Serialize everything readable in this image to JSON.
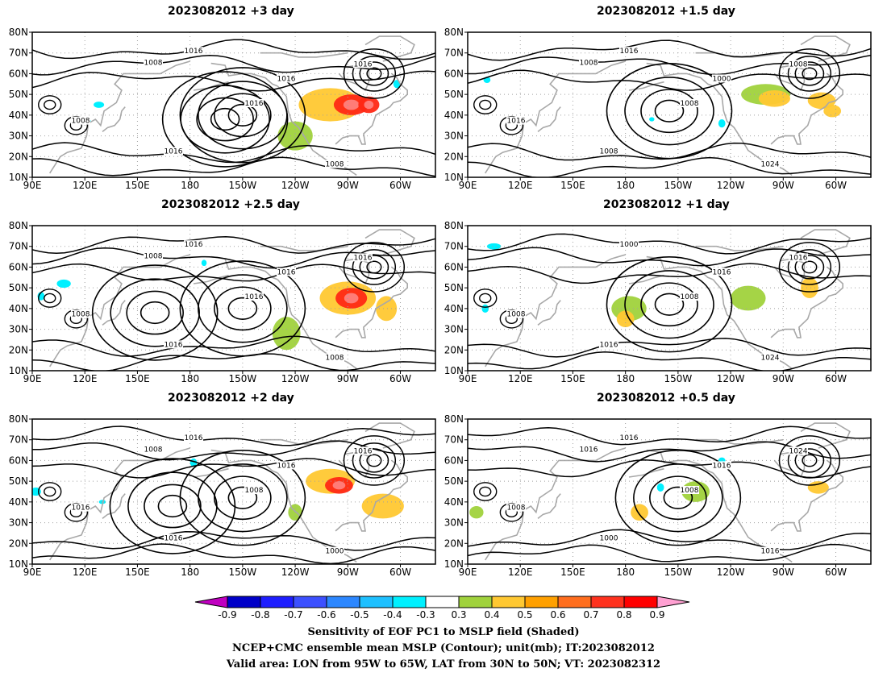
{
  "panels": [
    {
      "id": "p3",
      "title": "2023082012  +3 day",
      "contour_labels": [
        "1016",
        "1016",
        "1016",
        "1008",
        "1008",
        "1016",
        "1016",
        "1008"
      ],
      "warm": [
        [
          -120,
          30,
          10,
          7,
          "g"
        ],
        [
          -100,
          45,
          18,
          8,
          "y"
        ],
        [
          -88,
          45,
          10,
          5,
          "r"
        ],
        [
          -78,
          45,
          6,
          4,
          "r"
        ]
      ],
      "cool": [
        [
          128,
          45,
          3,
          1.5
        ],
        [
          -62,
          55,
          2,
          2
        ],
        [
          122,
          37,
          1.5,
          1
        ]
      ],
      "highs": [
        [
          -150,
          40
        ],
        [
          -160,
          38
        ]
      ]
    },
    {
      "id": "p15",
      "title": "2023082012  +1.5 day",
      "contour_labels": [
        "1016",
        "1008",
        "1008",
        "1016",
        "1024",
        "1008",
        "1000",
        "1008"
      ],
      "warm": [
        [
          -100,
          50,
          14,
          5,
          "g"
        ],
        [
          -95,
          48,
          9,
          4,
          "y"
        ],
        [
          -68,
          47,
          8,
          4,
          "y"
        ],
        [
          -62,
          42,
          5,
          3,
          "y"
        ]
      ],
      "cool": [
        [
          101,
          57,
          2,
          1.5
        ],
        [
          -125,
          36,
          2,
          2
        ],
        [
          -165,
          38,
          1.5,
          1
        ]
      ],
      "highs": [
        [
          -155,
          42
        ]
      ]
    },
    {
      "id": "p25",
      "title": "2023082012  +2.5 day",
      "contour_labels": [
        "1016",
        "1016",
        "1016",
        "1008",
        "1008",
        "1016",
        "1016",
        "1008"
      ],
      "warm": [
        [
          -125,
          28,
          8,
          8,
          "g"
        ],
        [
          -90,
          45,
          16,
          8,
          "y"
        ],
        [
          -88,
          45,
          9,
          5,
          "r"
        ],
        [
          -68,
          40,
          6,
          6,
          "y"
        ]
      ],
      "cool": [
        [
          108,
          52,
          4,
          2
        ],
        [
          95,
          46,
          2,
          2
        ],
        [
          -172,
          62,
          1.5,
          1.5
        ]
      ],
      "highs": [
        [
          -150,
          40
        ],
        [
          160,
          38
        ]
      ]
    },
    {
      "id": "p1",
      "title": "2023082012  +1 day",
      "contour_labels": [
        "1000",
        "1008",
        "1016",
        "1008",
        "1024",
        "1016",
        "1016"
      ],
      "warm": [
        [
          -178,
          40,
          10,
          6,
          "g"
        ],
        [
          -180,
          35,
          5,
          4,
          "y"
        ],
        [
          -110,
          45,
          10,
          6,
          "g"
        ],
        [
          -75,
          50,
          5,
          5,
          "y"
        ]
      ],
      "cool": [
        [
          105,
          70,
          4,
          1.5
        ],
        [
          100,
          40,
          2,
          2
        ]
      ],
      "highs": [
        [
          -155,
          42
        ]
      ]
    },
    {
      "id": "p2",
      "title": "2023082012  +2 day",
      "contour_labels": [
        "1016",
        "1008",
        "1016",
        "1016",
        "1000",
        "1016",
        "1016",
        "1008"
      ],
      "warm": [
        [
          -100,
          50,
          14,
          6,
          "y"
        ],
        [
          -95,
          48,
          8,
          4,
          "r"
        ],
        [
          -70,
          38,
          12,
          6,
          "y"
        ],
        [
          -120,
          35,
          4,
          4,
          "g"
        ]
      ],
      "cool": [
        [
          92,
          45,
          3,
          2
        ],
        [
          -178,
          59,
          2,
          2
        ],
        [
          130,
          40,
          2,
          1
        ]
      ],
      "highs": [
        [
          -150,
          42
        ],
        [
          170,
          38
        ]
      ]
    },
    {
      "id": "p05",
      "title": "2023082012  +0.5 day",
      "contour_labels": [
        "1016",
        "1008",
        "1000",
        "1008",
        "1016",
        "1024",
        "1016",
        "1016"
      ],
      "warm": [
        [
          -172,
          35,
          5,
          4,
          "y"
        ],
        [
          -140,
          45,
          8,
          5,
          "g"
        ],
        [
          -70,
          47,
          6,
          3,
          "y"
        ],
        [
          95,
          35,
          4,
          3,
          "g"
        ]
      ],
      "cool": [
        [
          -160,
          47,
          2,
          2
        ],
        [
          -125,
          60,
          2,
          1.5
        ]
      ],
      "highs": [
        [
          -150,
          42
        ]
      ]
    }
  ],
  "axes": {
    "lat_labels": [
      "10N",
      "20N",
      "30N",
      "40N",
      "50N",
      "60N",
      "70N",
      "80N"
    ],
    "lat_values": [
      10,
      20,
      30,
      40,
      50,
      60,
      70,
      80
    ],
    "lon_labels": [
      "90E",
      "120E",
      "150E",
      "180",
      "150W",
      "120W",
      "90W",
      "60W"
    ],
    "lon_values": [
      90,
      120,
      150,
      180,
      210,
      240,
      270,
      300
    ],
    "lon_range": [
      90,
      320
    ],
    "lat_range": [
      10,
      80
    ]
  },
  "colorbar": {
    "ticks": [
      "-0.9",
      "-0.8",
      "-0.7",
      "-0.6",
      "-0.5",
      "-0.4",
      "-0.3",
      "0.3",
      "0.4",
      "0.5",
      "0.6",
      "0.7",
      "0.8",
      "0.9"
    ],
    "colors": [
      "#c000c0",
      "#0000c8",
      "#1e1eff",
      "#3c50ff",
      "#2c87ff",
      "#1ec0ff",
      "#00f0ff",
      "#ffffff",
      "#a0d23c",
      "#ffc832",
      "#ffa000",
      "#ff6e1e",
      "#ff321e",
      "#ff0000",
      "#ffa0d2"
    ]
  },
  "footer": {
    "line1": "Sensitivity of EOF PC1 to MSLP field (Shaded)",
    "line2": "NCEP+CMC ensemble mean MSLP (Contour); unit(mb); IT:2023082012",
    "line3": "Valid area: LON from 95W to 65W, LAT from 30N to 50N; VT: 2023082312"
  },
  "colors": {
    "shade_green": "#a0d23c",
    "shade_yellow": "#ffc832",
    "shade_orange": "#ff8c1e",
    "shade_red": "#ff2814",
    "shade_cyan": "#00f0ff",
    "coast": "#a8a8a8",
    "contour": "#000000",
    "grid": "#a0a0a0"
  }
}
